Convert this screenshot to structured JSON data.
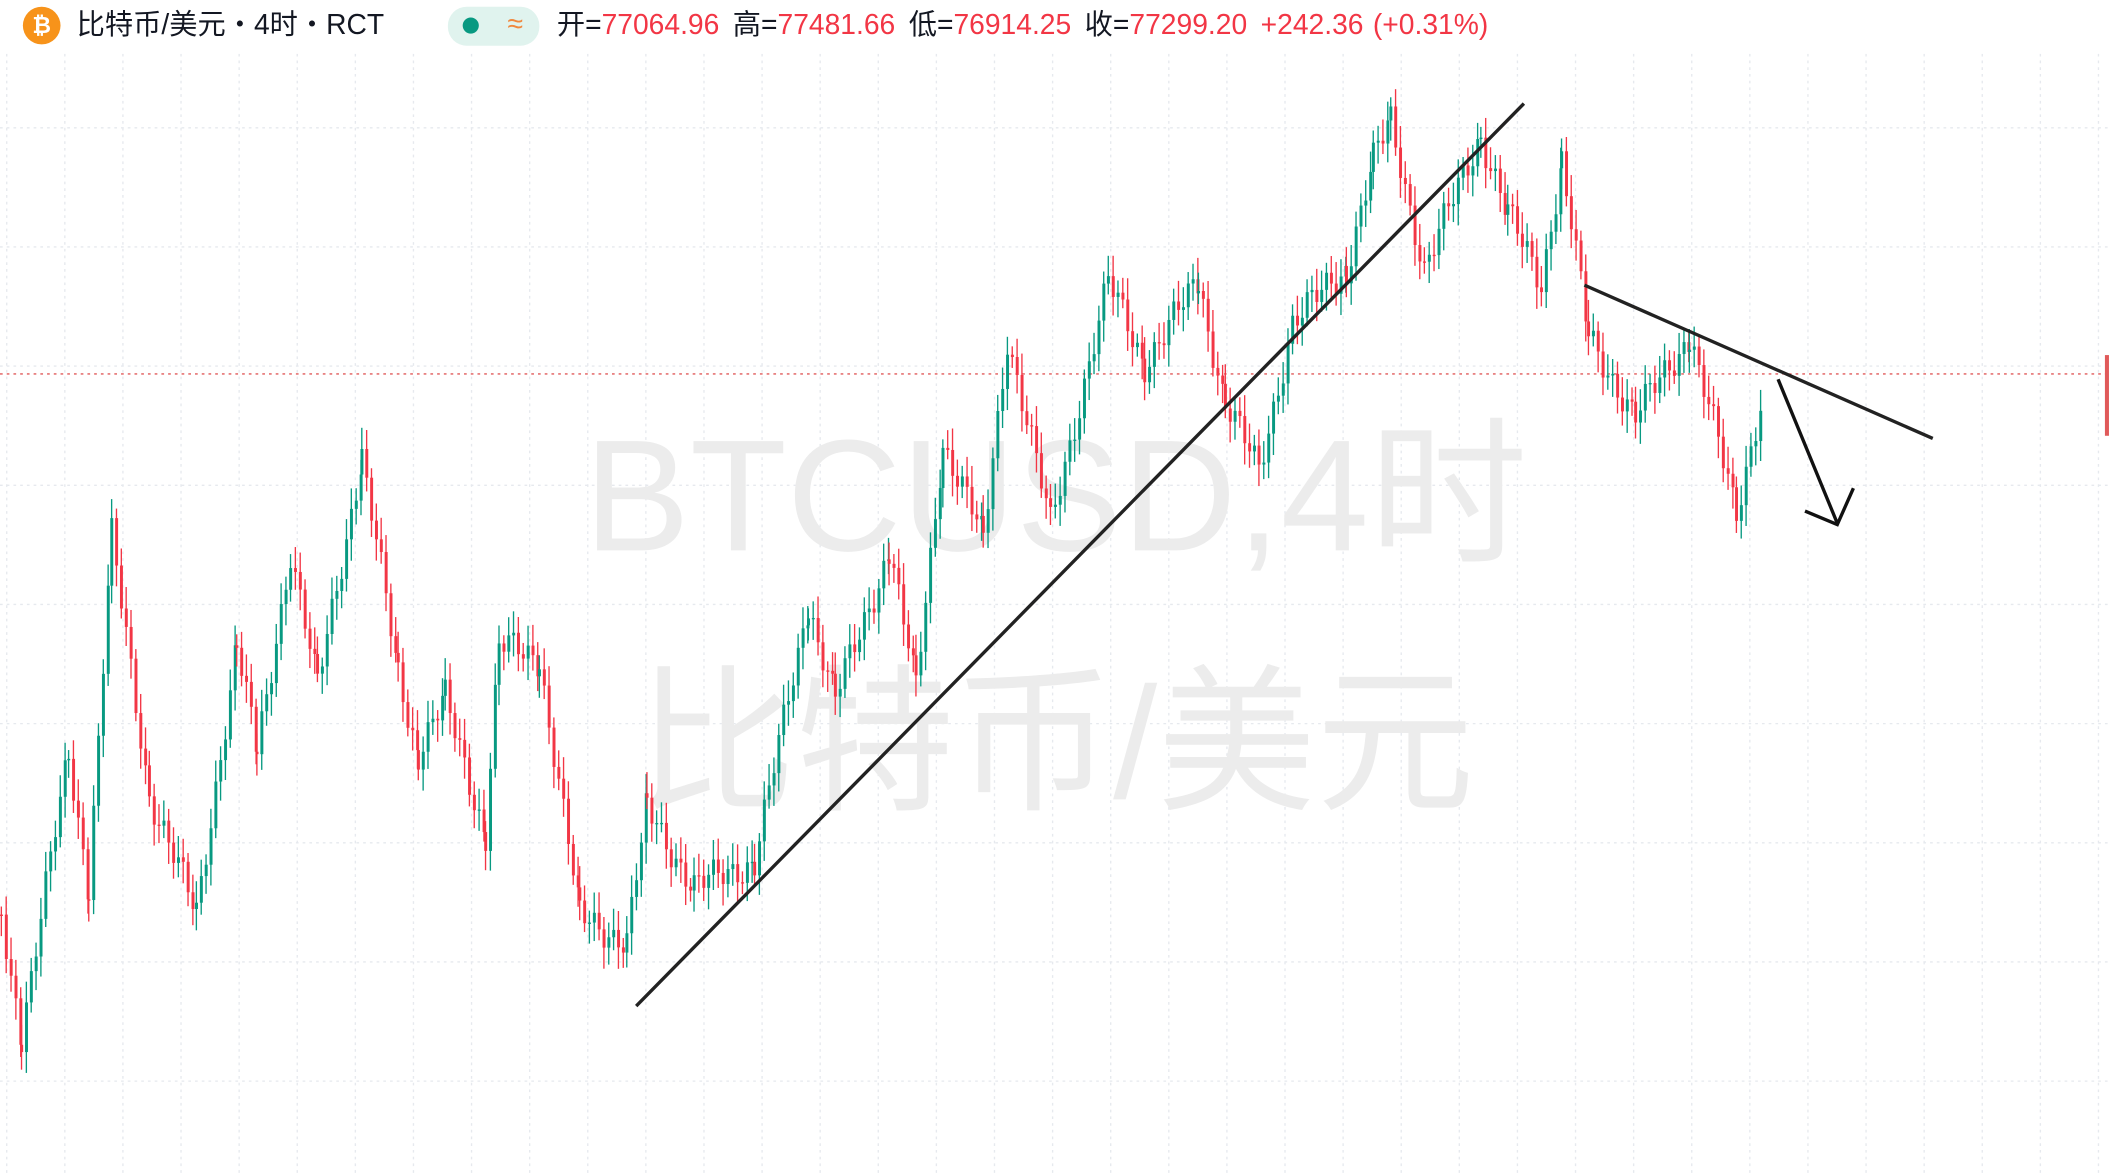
{
  "header": {
    "symbol": "比特币/美元",
    "separator": "・",
    "interval": "4时",
    "source": "RCT",
    "indicator": "≈",
    "ohlc": [
      {
        "label": "开=",
        "value": "77064.96"
      },
      {
        "label": "高=",
        "value": "77481.66"
      },
      {
        "label": "低=",
        "value": "76914.25"
      },
      {
        "label": "收=",
        "value": "77299.20"
      }
    ],
    "change": "+242.36",
    "change_pct": "(+0.31%)"
  },
  "watermark": {
    "line1": "BTCUSD,4时",
    "line2": "比特币/美元"
  }
}
